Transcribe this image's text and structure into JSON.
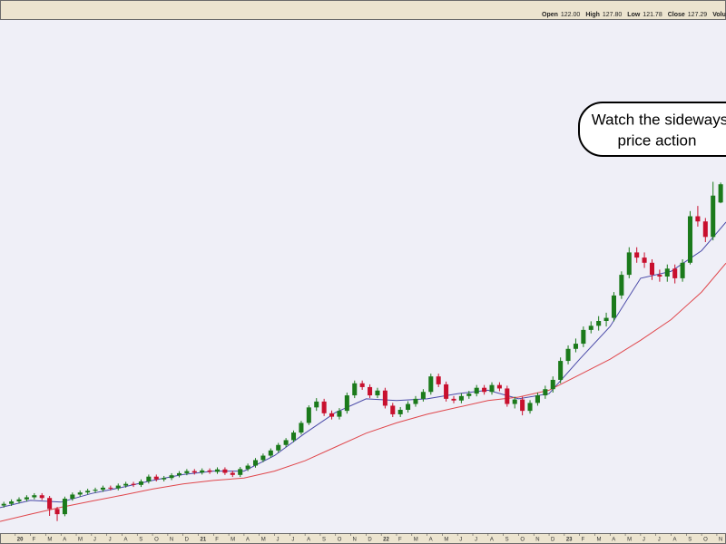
{
  "chart_data": {
    "type": "candlestick",
    "header": [
      {
        "label": "Open",
        "value": "122.00"
      },
      {
        "label": "High",
        "value": "127.80"
      },
      {
        "label": "Low",
        "value": "121.78"
      },
      {
        "label": "Close",
        "value": "127.29"
      },
      {
        "label": "Volu"
      }
    ],
    "annotation": [
      "Watch the sideways",
      "price action"
    ],
    "up_color": "#1b7a1b",
    "down_color": "#c8102e",
    "xlim": [
      0,
      47.6
    ],
    "ylim": [
      26,
      175
    ],
    "xticks": [
      {
        "value": 1,
        "label": "20"
      },
      {
        "value": 2,
        "label": "F"
      },
      {
        "value": 3,
        "label": "M"
      },
      {
        "value": 4,
        "label": "A"
      },
      {
        "value": 5,
        "label": "M"
      },
      {
        "value": 6,
        "label": "J"
      },
      {
        "value": 7,
        "label": "J"
      },
      {
        "value": 8,
        "label": "A"
      },
      {
        "value": 9,
        "label": "S"
      },
      {
        "value": 10,
        "label": "O"
      },
      {
        "value": 11,
        "label": "N"
      },
      {
        "value": 12,
        "label": "D"
      },
      {
        "value": 13,
        "label": "21"
      },
      {
        "value": 14,
        "label": "F"
      },
      {
        "value": 15,
        "label": "M"
      },
      {
        "value": 16,
        "label": "A"
      },
      {
        "value": 17,
        "label": "M"
      },
      {
        "value": 18,
        "label": "J"
      },
      {
        "value": 19,
        "label": "J"
      },
      {
        "value": 20,
        "label": "A"
      },
      {
        "value": 21,
        "label": "S"
      },
      {
        "value": 22,
        "label": "O"
      },
      {
        "value": 23,
        "label": "N"
      },
      {
        "value": 24,
        "label": "D"
      },
      {
        "value": 25,
        "label": "22"
      },
      {
        "value": 26,
        "label": "F"
      },
      {
        "value": 27,
        "label": "M"
      },
      {
        "value": 28,
        "label": "A"
      },
      {
        "value": 29,
        "label": "M"
      },
      {
        "value": 30,
        "label": "J"
      },
      {
        "value": 31,
        "label": "J"
      },
      {
        "value": 32,
        "label": "A"
      },
      {
        "value": 33,
        "label": "S"
      },
      {
        "value": 34,
        "label": "O"
      },
      {
        "value": 35,
        "label": "N"
      },
      {
        "value": 36,
        "label": "D"
      },
      {
        "value": 37,
        "label": "23"
      },
      {
        "value": 38,
        "label": "F"
      },
      {
        "value": 39,
        "label": "M"
      },
      {
        "value": 40,
        "label": "A"
      },
      {
        "value": 41,
        "label": "M"
      },
      {
        "value": 42,
        "label": "J"
      },
      {
        "value": 43,
        "label": "J"
      },
      {
        "value": 44,
        "label": "A"
      },
      {
        "value": 45,
        "label": "S"
      },
      {
        "value": 46,
        "label": "O"
      },
      {
        "value": 47,
        "label": "N"
      }
    ],
    "x": [
      0.25,
      0.75,
      1.25,
      1.75,
      2.25,
      2.75,
      3.25,
      3.75,
      4.25,
      4.75,
      5.25,
      5.75,
      6.25,
      6.75,
      7.25,
      7.75,
      8.25,
      8.75,
      9.25,
      9.75,
      10.25,
      10.75,
      11.25,
      11.75,
      12.25,
      12.75,
      13.25,
      13.75,
      14.25,
      14.75,
      15.25,
      15.75,
      16.25,
      16.75,
      17.25,
      17.75,
      18.25,
      18.75,
      19.25,
      19.75,
      20.25,
      20.75,
      21.25,
      21.75,
      22.25,
      22.75,
      23.25,
      23.75,
      24.25,
      24.75,
      25.25,
      25.75,
      26.25,
      26.75,
      27.25,
      27.75,
      28.25,
      28.75,
      29.25,
      29.75,
      30.25,
      30.75,
      31.25,
      31.75,
      32.25,
      32.75,
      33.25,
      33.75,
      34.25,
      34.75,
      35.25,
      35.75,
      36.25,
      36.75,
      37.25,
      37.75,
      38.25,
      38.75,
      39.25,
      39.75,
      40.25,
      40.75,
      41.25,
      41.75,
      42.25,
      42.75,
      43.25,
      43.75,
      44.25,
      44.75,
      45.25,
      45.75,
      46.25,
      46.75,
      47.25
    ],
    "open": [
      34.0,
      34.5,
      35.2,
      35.8,
      36.4,
      37.0,
      36.2,
      33.0,
      31.5,
      36.0,
      37.2,
      37.8,
      38.3,
      38.6,
      39.2,
      39.0,
      39.8,
      40.3,
      40.0,
      41.0,
      42.4,
      41.6,
      42.0,
      42.8,
      43.4,
      44.0,
      43.6,
      44.2,
      43.8,
      44.5,
      43.5,
      42.9,
      44.6,
      45.6,
      47.2,
      48.5,
      50.0,
      51.6,
      53.0,
      55.2,
      58.0,
      62.5,
      64.2,
      60.8,
      59.8,
      61.5,
      66.0,
      69.5,
      68.4,
      66.0,
      67.4,
      63.0,
      60.5,
      61.8,
      63.5,
      65.0,
      67.0,
      71.5,
      69.2,
      65.0,
      64.5,
      65.8,
      66.5,
      68.2,
      67.0,
      69.0,
      68.0,
      63.5,
      64.8,
      61.5,
      63.8,
      66.0,
      67.8,
      70.5,
      76.0,
      79.5,
      81.0,
      85.0,
      86.2,
      87.6,
      88.5,
      95.0,
      101.0,
      107.5,
      106.0,
      104.5,
      101.0,
      100.5,
      102.8,
      100.0,
      104.5,
      118.0,
      116.5,
      112.0,
      122.0
    ],
    "high": [
      35.1,
      35.8,
      36.4,
      37.0,
      37.6,
      37.6,
      36.8,
      33.6,
      36.6,
      37.8,
      38.4,
      38.9,
      39.2,
      39.8,
      39.8,
      40.4,
      40.9,
      40.9,
      41.6,
      43.0,
      43.0,
      42.6,
      43.4,
      44.0,
      44.6,
      44.6,
      44.8,
      44.8,
      45.1,
      45.1,
      44.1,
      45.2,
      46.2,
      47.8,
      49.1,
      50.6,
      52.2,
      53.6,
      55.8,
      58.6,
      63.1,
      65.2,
      65.0,
      61.6,
      62.3,
      66.8,
      70.3,
      70.3,
      69.2,
      68.2,
      68.2,
      63.8,
      62.6,
      64.3,
      65.8,
      67.8,
      72.3,
      72.3,
      70.0,
      65.8,
      66.6,
      67.3,
      69.0,
      69.0,
      69.8,
      69.8,
      68.8,
      65.6,
      65.6,
      64.6,
      66.8,
      68.8,
      71.5,
      77.0,
      80.5,
      82.5,
      86.0,
      87.5,
      89.0,
      90.0,
      96.0,
      102.0,
      109.0,
      109.0,
      107.5,
      105.5,
      102.5,
      104.0,
      104.0,
      105.5,
      119.5,
      121.0,
      117.5,
      128.0,
      127.8
    ],
    "low": [
      33.4,
      33.9,
      34.6,
      35.2,
      35.8,
      35.6,
      31.0,
      29.5,
      30.9,
      35.4,
      36.6,
      37.2,
      37.7,
      38.0,
      38.4,
      38.4,
      39.2,
      39.4,
      39.4,
      40.4,
      41.0,
      41.0,
      41.4,
      42.2,
      42.8,
      43.0,
      43.0,
      43.2,
      43.2,
      42.9,
      42.3,
      42.3,
      44.0,
      45.0,
      46.6,
      47.9,
      49.4,
      51.0,
      52.4,
      54.6,
      57.4,
      61.5,
      60.0,
      59.0,
      59.0,
      60.7,
      65.2,
      67.6,
      65.2,
      65.2,
      62.2,
      59.7,
      59.7,
      61.0,
      62.7,
      64.2,
      66.2,
      68.4,
      64.2,
      63.7,
      63.7,
      65.0,
      65.7,
      66.2,
      66.2,
      67.2,
      62.7,
      62.2,
      60.2,
      60.7,
      63.0,
      65.0,
      66.8,
      69.5,
      75.0,
      78.5,
      80.0,
      84.0,
      84.8,
      86.0,
      87.5,
      94.0,
      100.0,
      104.5,
      103.0,
      99.5,
      99.0,
      99.0,
      98.5,
      99.0,
      104.0,
      115.0,
      110.5,
      111.0,
      121.78
    ],
    "close": [
      34.5,
      35.2,
      35.8,
      36.4,
      37.0,
      36.2,
      33.0,
      31.5,
      36.0,
      37.2,
      37.8,
      38.3,
      38.6,
      39.2,
      39.0,
      39.8,
      40.3,
      40.0,
      41.0,
      42.4,
      41.6,
      42.0,
      42.8,
      43.4,
      44.0,
      43.6,
      44.2,
      43.8,
      44.5,
      43.5,
      42.9,
      44.6,
      45.6,
      47.2,
      48.5,
      50.0,
      51.6,
      53.0,
      55.2,
      58.0,
      62.5,
      64.2,
      60.8,
      59.8,
      61.5,
      66.0,
      69.5,
      68.4,
      66.0,
      67.4,
      63.0,
      60.5,
      61.8,
      63.5,
      65.0,
      67.0,
      71.5,
      69.2,
      65.0,
      64.5,
      65.8,
      66.5,
      68.2,
      67.0,
      69.0,
      68.0,
      63.5,
      64.8,
      61.5,
      63.8,
      66.0,
      67.8,
      70.5,
      76.0,
      79.5,
      81.0,
      85.0,
      86.2,
      87.6,
      88.5,
      95.0,
      101.0,
      107.5,
      106.0,
      104.5,
      101.0,
      100.5,
      102.8,
      100.0,
      104.5,
      118.0,
      116.5,
      112.0,
      124.0,
      127.29
    ],
    "lines": [
      {
        "color": "#4a4aa8",
        "x": [
          0,
          2,
          4,
          6,
          8,
          10,
          12,
          14,
          16,
          18,
          20,
          22,
          24,
          26,
          28,
          30,
          32,
          34,
          36,
          38,
          40,
          42,
          44,
          46,
          47.6
        ],
        "values": [
          33.4,
          35.5,
          35.0,
          37.5,
          39.3,
          41.3,
          43.0,
          44.0,
          44.0,
          48.5,
          55.0,
          61.0,
          65.0,
          64.5,
          65.0,
          66.5,
          67.5,
          65.0,
          66.5,
          76.5,
          86.0,
          100.0,
          102.0,
          108.0,
          116.3
        ]
      },
      {
        "color": "#e0474c",
        "x": [
          0,
          2,
          4,
          6,
          8,
          10,
          12,
          14,
          16,
          18,
          20,
          22,
          24,
          26,
          28,
          30,
          32,
          34,
          36,
          38,
          40,
          42,
          44,
          46,
          47.6
        ],
        "values": [
          29.4,
          31.5,
          33.5,
          35.3,
          37.0,
          38.8,
          40.3,
          41.3,
          42.0,
          44.0,
          47.0,
          51.0,
          55.0,
          58.0,
          60.5,
          62.5,
          64.5,
          65.5,
          67.5,
          72.0,
          76.5,
          82.0,
          88.0,
          96.0,
          104.4
        ]
      }
    ]
  }
}
